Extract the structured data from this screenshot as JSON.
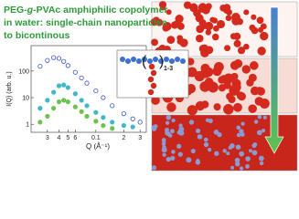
{
  "header": {
    "line1": [
      "PEG-",
      "g",
      "-PVAc amphiphilic copolymer"
    ],
    "line2": "in water: single-chain nanoparticles",
    "line3": "to bicontinous"
  },
  "diagram": {
    "label": "1-3"
  },
  "chart_data": {
    "type": "scatter",
    "x_label": "Q (Å⁻¹)",
    "y_label": "I(Q) (arb. u.)",
    "log_x": true,
    "log_y": true,
    "xlim": [
      0.02,
      0.35
    ],
    "ylim": [
      0.5,
      900
    ],
    "xticks": [
      {
        "value": 0.03,
        "label": "3"
      },
      {
        "value": 0.04,
        "label": "4"
      },
      {
        "value": 0.05,
        "label": "5"
      },
      {
        "value": 0.06,
        "label": "6"
      },
      {
        "value": 0.1,
        "label": "0.1"
      },
      {
        "value": 0.2,
        "label": "2"
      },
      {
        "value": 0.3,
        "label": "3"
      }
    ],
    "yticks": [
      1,
      10,
      100
    ],
    "series": [
      {
        "name": "blue",
        "color": "#3a4fc8",
        "filled": false,
        "x": [
          0.025,
          0.03,
          0.035,
          0.04,
          0.045,
          0.05,
          0.06,
          0.07,
          0.08,
          0.1,
          0.12,
          0.15,
          0.2,
          0.25,
          0.3
        ],
        "values": [
          150,
          250,
          320,
          300,
          230,
          160,
          90,
          55,
          35,
          18,
          10,
          5,
          2.5,
          1.6,
          1.2
        ]
      },
      {
        "name": "cyan",
        "color": "#3fb8c9",
        "filled": true,
        "x": [
          0.025,
          0.03,
          0.035,
          0.04,
          0.045,
          0.05,
          0.06,
          0.07,
          0.08,
          0.1,
          0.12,
          0.15,
          0.2,
          0.25
        ],
        "values": [
          4,
          8,
          16,
          28,
          30,
          24,
          14,
          8,
          5,
          2.8,
          1.8,
          1.2,
          0.9,
          0.8
        ]
      },
      {
        "name": "green",
        "color": "#6cc24a",
        "filled": true,
        "x": [
          0.025,
          0.03,
          0.035,
          0.04,
          0.045,
          0.05,
          0.06,
          0.07,
          0.08,
          0.1,
          0.12,
          0.15
        ],
        "values": [
          1.2,
          2,
          4,
          7,
          8,
          7,
          4.5,
          3,
          2,
          1.3,
          0.9,
          0.7
        ]
      }
    ]
  }
}
